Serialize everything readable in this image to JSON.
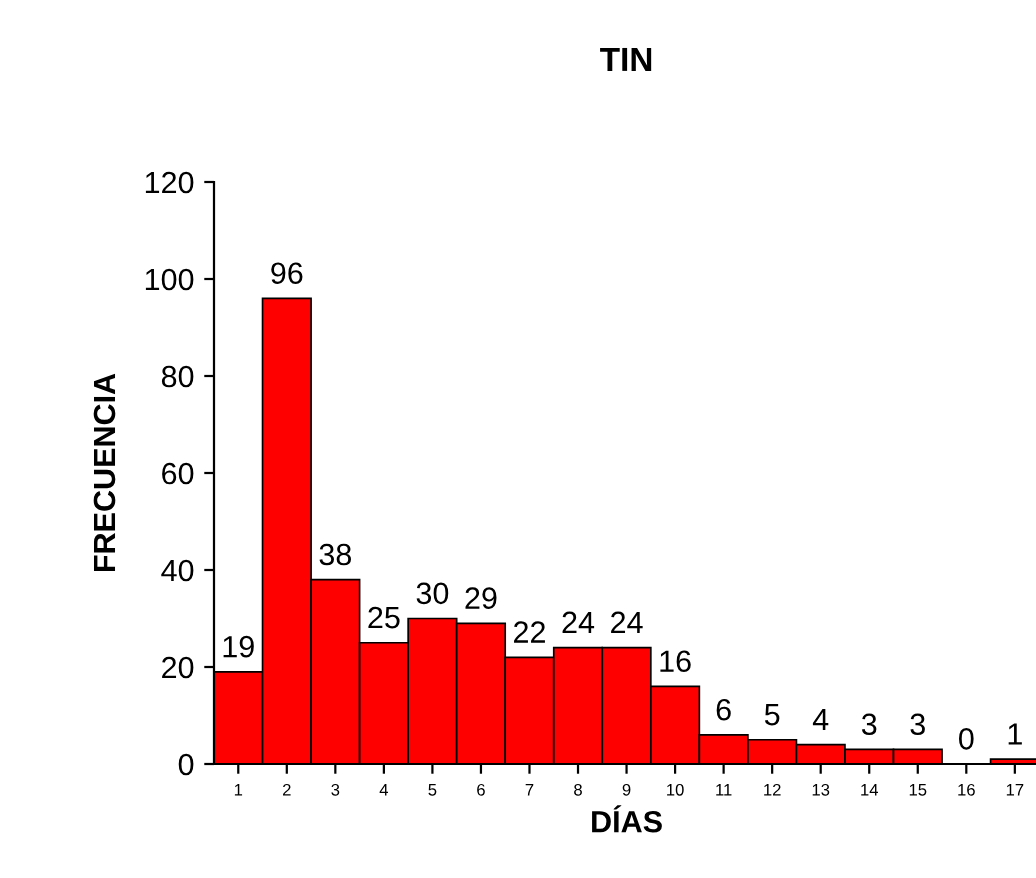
{
  "chart_data": {
    "type": "bar",
    "title": "TIN",
    "xlabel": "DÍAS",
    "ylabel": "FRECUENCIA",
    "categories": [
      "1",
      "2",
      "3",
      "4",
      "5",
      "6",
      "7",
      "8",
      "9",
      "10",
      "11",
      "12",
      "13",
      "14",
      "15",
      "16",
      "17"
    ],
    "values": [
      19,
      96,
      38,
      25,
      30,
      29,
      22,
      24,
      24,
      16,
      6,
      5,
      4,
      3,
      3,
      0,
      1
    ],
    "color": "#ff0000",
    "ylim": [
      0,
      120
    ],
    "yticks": [
      0,
      20,
      40,
      60,
      80,
      100,
      120
    ],
    "grid": false,
    "data_labels": true
  }
}
